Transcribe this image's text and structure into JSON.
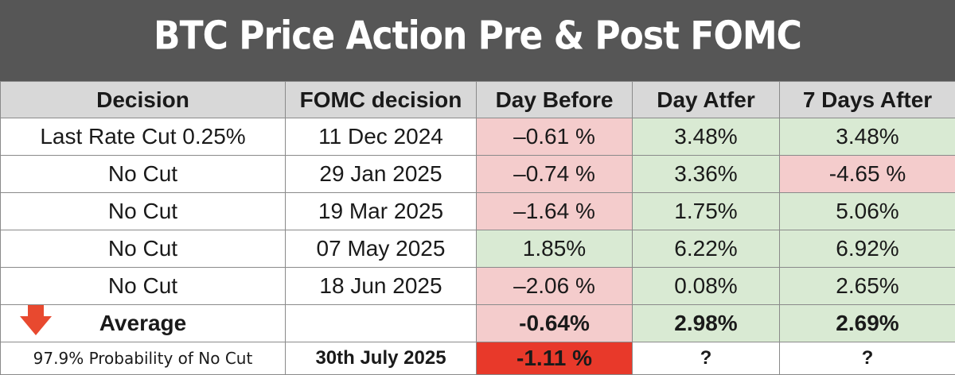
{
  "title": "BTC Price Action Pre & Post FOMC",
  "headers": [
    "Decision",
    "FOMC decision",
    "Day Before",
    "Day Atfer",
    "7 Days After"
  ],
  "rows": [
    {
      "decision": "Last Rate Cut 0.25%",
      "date": "11 Dec 2024",
      "day_before": "–0.61 %",
      "day_after": "3.48%",
      "seven_days": "3.48%"
    },
    {
      "decision": "No Cut",
      "date": "29 Jan 2025",
      "day_before": "–0.74 %",
      "day_after": "3.36%",
      "seven_days": "-4.65 %"
    },
    {
      "decision": "No Cut",
      "date": "19 Mar 2025",
      "day_before": "–1.64 %",
      "day_after": "1.75%",
      "seven_days": "5.06%"
    },
    {
      "decision": "No Cut",
      "date": "07 May 2025",
      "day_before": "1.85%",
      "day_after": "6.22%",
      "seven_days": "6.92%"
    },
    {
      "decision": "No Cut",
      "date": "18 Jun 2025",
      "day_before": "–2.06 %",
      "day_after": "0.08%",
      "seven_days": "2.65%"
    }
  ],
  "average": {
    "label": "Average",
    "date": "",
    "day_before": "-0.64%",
    "day_after": "2.98%",
    "seven_days": "2.69%"
  },
  "upcoming": {
    "label": "97.9% Probability of No Cut",
    "date": "30th July 2025",
    "day_before": "-1.11 %",
    "day_after": "?",
    "seven_days": "?"
  },
  "colors": {
    "header_bg": "#565656",
    "negative": "#f4cccc",
    "positive": "#d9ead3",
    "highlight": "#e8392a",
    "arrow": "#e8492f"
  },
  "icons": {
    "arrow": "down-arrow-icon"
  }
}
